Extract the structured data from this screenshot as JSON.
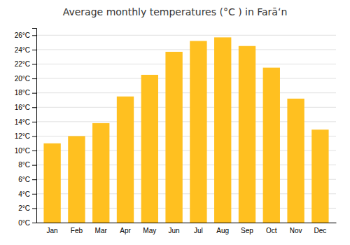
{
  "chart_data": {
    "type": "bar",
    "title": "Average monthly temperatures (°C ) in Farāʻn",
    "categories": [
      "Jan",
      "Feb",
      "Mar",
      "Apr",
      "May",
      "Jun",
      "Jul",
      "Aug",
      "Sep",
      "Oct",
      "Nov",
      "Dec"
    ],
    "values": [
      11.0,
      12.0,
      13.8,
      17.5,
      20.5,
      23.7,
      25.2,
      25.7,
      24.5,
      21.5,
      17.2,
      12.9
    ],
    "color": "#FFC020",
    "ylim": [
      0,
      27
    ],
    "yticks": [
      {
        "value": 0,
        "label": "0°C"
      },
      {
        "value": 2,
        "label": "2°C"
      },
      {
        "value": 4,
        "label": "4°C"
      },
      {
        "value": 6,
        "label": "6°C"
      },
      {
        "value": 8,
        "label": "8°C"
      },
      {
        "value": 10,
        "label": "10°C"
      },
      {
        "value": 12,
        "label": "12°C"
      },
      {
        "value": 14,
        "label": "14°C"
      },
      {
        "value": 16,
        "label": "16°C"
      },
      {
        "value": 18,
        "label": "18°C"
      },
      {
        "value": 20,
        "label": "20°C"
      },
      {
        "value": 22,
        "label": "22°C"
      },
      {
        "value": 24,
        "label": "24°C"
      },
      {
        "value": 26,
        "label": "26°C"
      }
    ],
    "grid": true
  }
}
